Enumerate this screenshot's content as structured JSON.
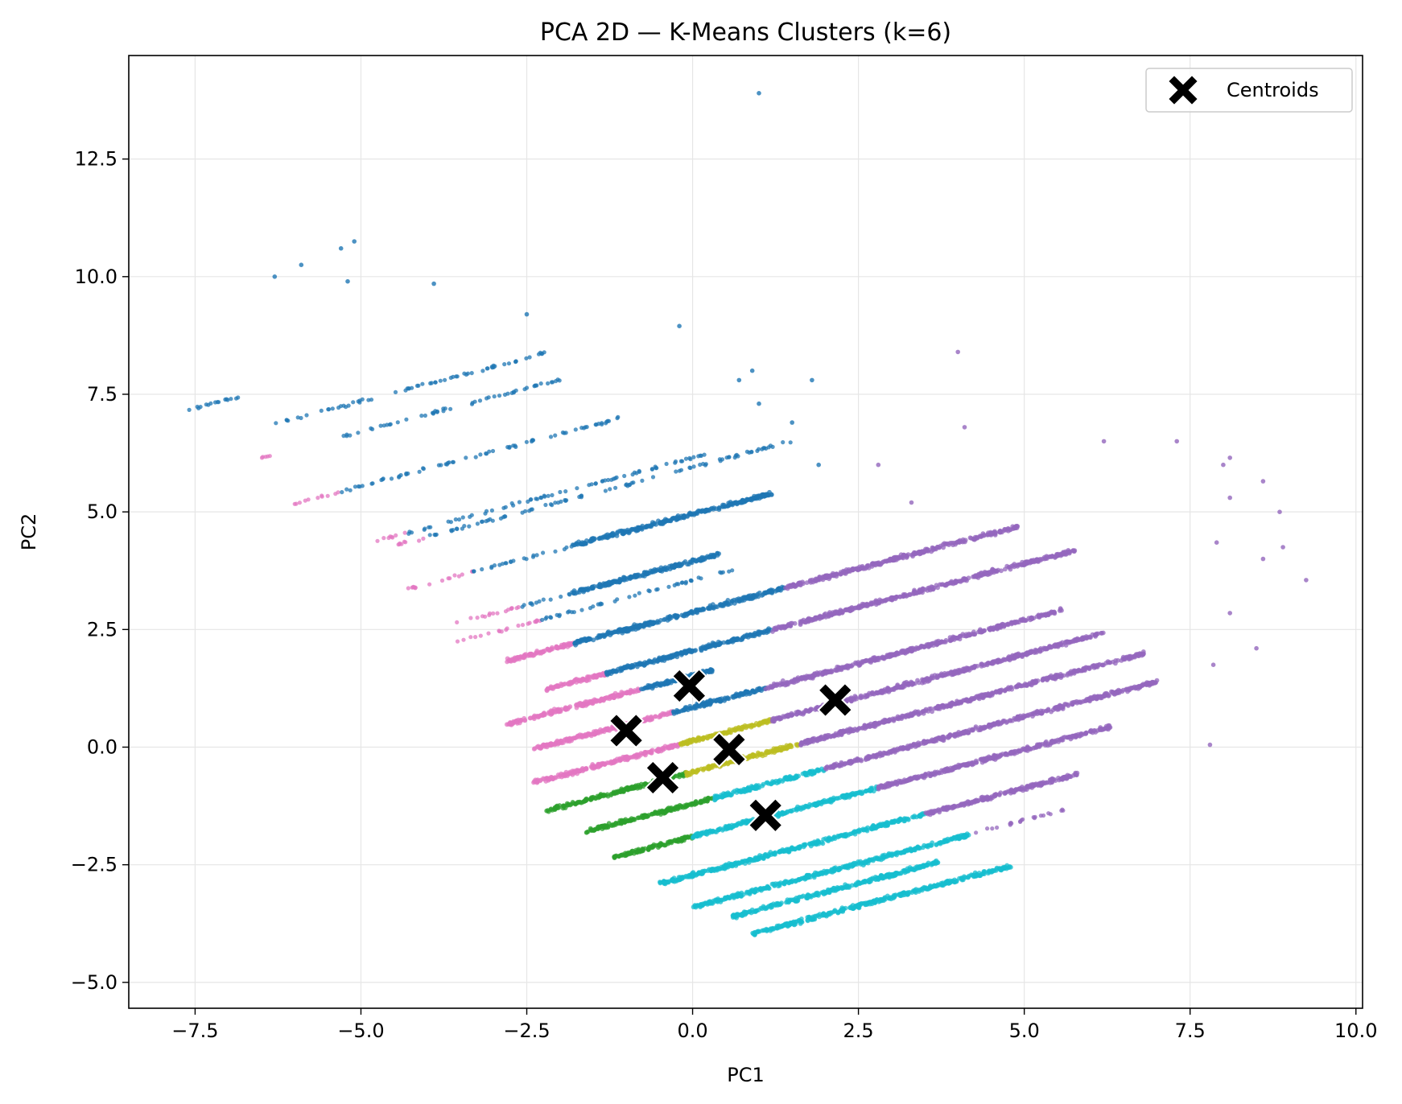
{
  "chart_data": {
    "type": "scatter",
    "title": "PCA 2D — K-Means Clusters (k=6)",
    "xlabel": "PC1",
    "ylabel": "PC2",
    "xlim": [
      -8.5,
      10.1
    ],
    "ylim": [
      -5.55,
      14.7
    ],
    "xticks": [
      -7.5,
      -5.0,
      -2.5,
      0.0,
      2.5,
      5.0,
      7.5,
      10.0
    ],
    "xtick_labels": [
      "−7.5",
      "−5.0",
      "−2.5",
      "0.0",
      "2.5",
      "5.0",
      "7.5",
      "10.0"
    ],
    "yticks": [
      -5.0,
      -2.5,
      0.0,
      2.5,
      5.0,
      7.5,
      10.0,
      12.5
    ],
    "ytick_labels": [
      "−5.0",
      "−2.5",
      "0.0",
      "2.5",
      "5.0",
      "7.5",
      "10.0",
      "12.5"
    ],
    "grid": true,
    "legend": {
      "location": "top-right",
      "entries": [
        {
          "label": "Centroids",
          "marker": "X",
          "color": "#000000"
        }
      ]
    },
    "colors": {
      "blue": "#1f77b4",
      "pink": "#e377c2",
      "purple": "#9467bd",
      "olive": "#bcbd22",
      "green": "#2ca02c",
      "cyan": "#17becf",
      "centroid": "#000000"
    },
    "stripe_slope": 0.37,
    "stripes": [
      {
        "b": 9.98,
        "segments": [
          {
            "color": "blue",
            "x0": -7.7,
            "x1": -6.7,
            "dense": false
          }
        ]
      },
      {
        "b": 9.2,
        "segments": [
          {
            "color": "blue",
            "x0": -6.3,
            "x1": -2.2,
            "dense": false
          }
        ]
      },
      {
        "b": 8.55,
        "segments": [
          {
            "color": "pink",
            "x0": -6.6,
            "x1": -6.3,
            "dense": false
          },
          {
            "color": "blue",
            "x0": -5.3,
            "x1": -2.0,
            "dense": false
          }
        ]
      },
      {
        "b": 7.4,
        "segments": [
          {
            "color": "pink",
            "x0": -6.0,
            "x1": -5.3,
            "dense": false
          },
          {
            "color": "blue",
            "x0": -5.3,
            "x1": -1.0,
            "dense": false
          }
        ]
      },
      {
        "b": 6.15,
        "segments": [
          {
            "color": "pink",
            "x0": -4.8,
            "x1": -4.3,
            "dense": false
          },
          {
            "color": "blue",
            "x0": -4.3,
            "x1": 0.2,
            "dense": false
          }
        ]
      },
      {
        "b": 5.95,
        "segments": [
          {
            "color": "pink",
            "x0": -4.5,
            "x1": -4.0,
            "dense": false
          },
          {
            "color": "blue",
            "x0": -4.0,
            "x1": -0.8,
            "dense": false
          },
          {
            "color": "blue",
            "x0": -0.8,
            "x1": 1.5,
            "dense": false
          }
        ]
      },
      {
        "b": 4.95,
        "segments": [
          {
            "color": "pink",
            "x0": -4.3,
            "x1": -3.3,
            "dense": false
          },
          {
            "color": "blue",
            "x0": -3.3,
            "x1": -1.8,
            "dense": false
          },
          {
            "color": "blue",
            "x0": -1.8,
            "x1": 1.2,
            "dense": true
          }
        ]
      },
      {
        "b": 3.95,
        "segments": [
          {
            "color": "pink",
            "x0": -3.6,
            "x1": -2.6,
            "dense": false
          },
          {
            "color": "blue",
            "x0": -2.6,
            "x1": -1.8,
            "dense": false
          },
          {
            "color": "blue",
            "x0": -1.8,
            "x1": 0.4,
            "dense": true
          }
        ]
      },
      {
        "b": 3.55,
        "segments": [
          {
            "color": "pink",
            "x0": -3.6,
            "x1": -2.3,
            "dense": false
          },
          {
            "color": "blue",
            "x0": -2.3,
            "x1": 0.6,
            "dense": false
          }
        ]
      },
      {
        "b": 2.87,
        "segments": [
          {
            "color": "pink",
            "x0": -2.8,
            "x1": -1.8,
            "dense": true
          },
          {
            "color": "blue",
            "x0": -1.8,
            "x1": 1.4,
            "dense": true
          },
          {
            "color": "purple",
            "x0": 1.4,
            "x1": 4.9,
            "dense": true
          }
        ]
      },
      {
        "b": 2.05,
        "segments": [
          {
            "color": "pink",
            "x0": -2.2,
            "x1": -1.3,
            "dense": true
          },
          {
            "color": "blue",
            "x0": -1.3,
            "x1": 1.2,
            "dense": true
          },
          {
            "color": "purple",
            "x0": 1.2,
            "x1": 5.8,
            "dense": true
          }
        ]
      },
      {
        "b": 1.52,
        "segments": [
          {
            "color": "pink",
            "x0": -2.8,
            "x1": -0.8,
            "dense": true
          },
          {
            "color": "blue",
            "x0": -0.8,
            "x1": 0.3,
            "dense": true
          }
        ]
      },
      {
        "b": 0.85,
        "segments": [
          {
            "color": "pink",
            "x0": -2.4,
            "x1": -0.3,
            "dense": true
          },
          {
            "color": "blue",
            "x0": -0.3,
            "x1": 1.1,
            "dense": true
          },
          {
            "color": "purple",
            "x0": 1.1,
            "x1": 5.6,
            "dense": true
          }
        ]
      },
      {
        "b": 0.13,
        "segments": [
          {
            "color": "pink",
            "x0": -2.4,
            "x1": -1.2,
            "dense": true
          },
          {
            "color": "pink",
            "x0": -1.2,
            "x1": -0.2,
            "dense": true
          },
          {
            "color": "olive",
            "x0": -0.2,
            "x1": 1.2,
            "dense": true
          },
          {
            "color": "purple",
            "x0": 1.2,
            "x1": 6.2,
            "dense": true
          }
        ]
      },
      {
        "b": -0.53,
        "segments": [
          {
            "color": "green",
            "x0": -2.2,
            "x1": -0.1,
            "dense": true
          },
          {
            "color": "olive",
            "x0": -0.1,
            "x1": 1.6,
            "dense": true
          },
          {
            "color": "purple",
            "x0": 1.6,
            "x1": 6.8,
            "dense": true
          }
        ]
      },
      {
        "b": -1.2,
        "segments": [
          {
            "color": "green",
            "x0": -1.6,
            "x1": 0.3,
            "dense": true
          },
          {
            "color": "cyan",
            "x0": 0.3,
            "x1": 2.0,
            "dense": true
          },
          {
            "color": "purple",
            "x0": 2.0,
            "x1": 7.0,
            "dense": true
          }
        ]
      },
      {
        "b": -1.9,
        "segments": [
          {
            "color": "green",
            "x0": -1.2,
            "x1": 0.0,
            "dense": true
          },
          {
            "color": "cyan",
            "x0": 0.0,
            "x1": 2.8,
            "dense": true
          },
          {
            "color": "purple",
            "x0": 2.8,
            "x1": 6.3,
            "dense": true
          }
        ]
      },
      {
        "b": -2.72,
        "segments": [
          {
            "color": "cyan",
            "x0": -0.5,
            "x1": 3.5,
            "dense": true
          },
          {
            "color": "purple",
            "x0": 3.5,
            "x1": 5.8,
            "dense": true
          }
        ]
      },
      {
        "b": -3.4,
        "segments": [
          {
            "color": "cyan",
            "x0": 0.0,
            "x1": 4.2,
            "dense": true
          },
          {
            "color": "purple",
            "x0": 4.2,
            "x1": 5.6,
            "dense": false
          }
        ]
      },
      {
        "b": -3.82,
        "segments": [
          {
            "color": "cyan",
            "x0": 0.6,
            "x1": 3.7,
            "dense": true
          }
        ]
      },
      {
        "b": -4.3,
        "segments": [
          {
            "color": "cyan",
            "x0": 0.9,
            "x1": 4.8,
            "dense": true
          }
        ]
      }
    ],
    "outliers": [
      {
        "x": 1.0,
        "y": 13.9,
        "color": "blue"
      },
      {
        "x": -5.1,
        "y": 10.75,
        "color": "blue"
      },
      {
        "x": -5.3,
        "y": 10.6,
        "color": "blue"
      },
      {
        "x": -5.9,
        "y": 10.25,
        "color": "blue"
      },
      {
        "x": -6.3,
        "y": 10.0,
        "color": "blue"
      },
      {
        "x": -5.2,
        "y": 9.9,
        "color": "blue"
      },
      {
        "x": -3.9,
        "y": 9.85,
        "color": "blue"
      },
      {
        "x": -0.2,
        "y": 8.95,
        "color": "blue"
      },
      {
        "x": 0.9,
        "y": 8.0,
        "color": "blue"
      },
      {
        "x": 0.7,
        "y": 7.8,
        "color": "blue"
      },
      {
        "x": 1.8,
        "y": 7.8,
        "color": "blue"
      },
      {
        "x": 1.0,
        "y": 7.3,
        "color": "blue"
      },
      {
        "x": 1.5,
        "y": 6.9,
        "color": "blue"
      },
      {
        "x": 1.9,
        "y": 6.0,
        "color": "blue"
      },
      {
        "x": -2.5,
        "y": 9.2,
        "color": "blue"
      },
      {
        "x": 4.0,
        "y": 8.4,
        "color": "purple"
      },
      {
        "x": 4.1,
        "y": 6.8,
        "color": "purple"
      },
      {
        "x": 6.2,
        "y": 6.5,
        "color": "purple"
      },
      {
        "x": 7.3,
        "y": 6.5,
        "color": "purple"
      },
      {
        "x": 8.1,
        "y": 6.15,
        "color": "purple"
      },
      {
        "x": 8.0,
        "y": 6.0,
        "color": "purple"
      },
      {
        "x": 8.6,
        "y": 5.65,
        "color": "purple"
      },
      {
        "x": 8.1,
        "y": 5.3,
        "color": "purple"
      },
      {
        "x": 8.85,
        "y": 5.0,
        "color": "purple"
      },
      {
        "x": 7.9,
        "y": 4.35,
        "color": "purple"
      },
      {
        "x": 8.9,
        "y": 4.25,
        "color": "purple"
      },
      {
        "x": 8.6,
        "y": 4.0,
        "color": "purple"
      },
      {
        "x": 9.25,
        "y": 3.55,
        "color": "purple"
      },
      {
        "x": 8.1,
        "y": 2.85,
        "color": "purple"
      },
      {
        "x": 8.5,
        "y": 2.1,
        "color": "purple"
      },
      {
        "x": 7.85,
        "y": 1.75,
        "color": "purple"
      },
      {
        "x": 7.8,
        "y": 0.05,
        "color": "purple"
      },
      {
        "x": 2.8,
        "y": 6.0,
        "color": "purple"
      },
      {
        "x": 3.3,
        "y": 5.2,
        "color": "purple"
      }
    ],
    "centroids": [
      {
        "x": -0.05,
        "y": 1.3
      },
      {
        "x": 2.15,
        "y": 1.0
      },
      {
        "x": -1.0,
        "y": 0.35
      },
      {
        "x": 0.55,
        "y": -0.05
      },
      {
        "x": -0.45,
        "y": -0.65
      },
      {
        "x": 1.1,
        "y": -1.45
      }
    ]
  }
}
